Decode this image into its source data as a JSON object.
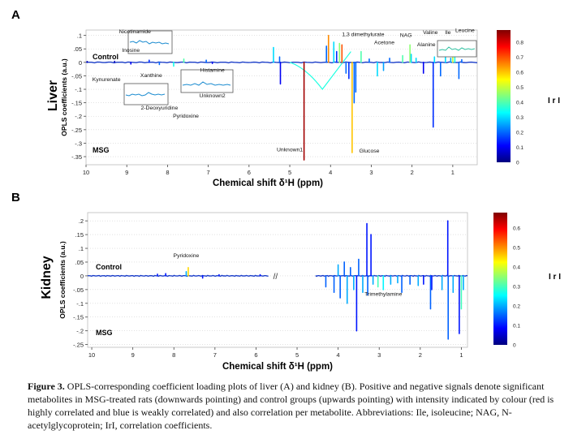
{
  "colorbar_stops": [
    "#00007f",
    "#0000ff",
    "#007fff",
    "#00ffff",
    "#7fff7f",
    "#ffff00",
    "#ff7f00",
    "#ff0000",
    "#7f0000"
  ],
  "chart_data": [
    {
      "type": "line",
      "panel_label": "A",
      "organ": "Liver",
      "ylabel": "OPLS coefficients (a.u.)",
      "xlabel": "Chemical shift  δ¹H  (ppm)",
      "x_reversed": true,
      "xlim": [
        10,
        0.4
      ],
      "ylim": [
        -0.38,
        0.12
      ],
      "xticks": [
        10,
        9,
        8,
        7,
        6,
        5,
        4,
        3,
        2,
        1
      ],
      "yticks": [
        0.1,
        0.05,
        0,
        -0.05,
        -0.1,
        -0.15,
        -0.2,
        -0.25,
        -0.3,
        -0.35
      ],
      "group_labels": {
        "top": "Control",
        "bottom": "MSG"
      },
      "colorbar": {
        "label": "I r I",
        "min": 0,
        "max": 0.88,
        "ticks": [
          0.1,
          0.2,
          0.3,
          0.4,
          0.5,
          0.6,
          0.7,
          0.8
        ]
      },
      "peaks": [
        {
          "x": 9.97,
          "y": 0.003,
          "r": 0.05
        },
        {
          "x": 9.3,
          "y": 0.004,
          "r": 0.05
        },
        {
          "x": 8.9,
          "y": -0.006,
          "r": 0.1
        },
        {
          "x": 8.45,
          "y": 0.008,
          "r": 0.15
        },
        {
          "x": 8.2,
          "y": -0.008,
          "r": 0.2
        },
        {
          "x": 7.85,
          "y": -0.014,
          "r": 0.35
        },
        {
          "x": 7.6,
          "y": 0.012,
          "r": 0.4
        },
        {
          "x": 7.05,
          "y": 0.008,
          "r": 0.2
        },
        {
          "x": 6.9,
          "y": -0.004,
          "r": 0.1
        },
        {
          "x": 5.4,
          "y": 0.055,
          "r": 0.3
        },
        {
          "x": 5.25,
          "y": 0.02,
          "r": 0.2
        },
        {
          "x": 5.23,
          "y": -0.08,
          "r": 0.1
        },
        {
          "x": 4.65,
          "y": -0.362,
          "r": 0.85
        },
        {
          "x": 4.1,
          "y": 0.06,
          "r": 0.2
        },
        {
          "x": 4.05,
          "y": 0.1,
          "r": 0.65
        },
        {
          "x": 3.92,
          "y": 0.075,
          "r": 0.3
        },
        {
          "x": 3.85,
          "y": 0.04,
          "r": 0.15
        },
        {
          "x": 3.78,
          "y": 0.07,
          "r": 0.45
        },
        {
          "x": 3.72,
          "y": 0.065,
          "r": 0.7
        },
        {
          "x": 3.62,
          "y": -0.04,
          "r": 0.2
        },
        {
          "x": 3.55,
          "y": -0.06,
          "r": 0.15
        },
        {
          "x": 3.47,
          "y": -0.335,
          "r": 0.6
        },
        {
          "x": 3.42,
          "y": -0.15,
          "r": 0.2
        },
        {
          "x": 3.38,
          "y": -0.11,
          "r": 0.2
        },
        {
          "x": 3.25,
          "y": 0.04,
          "r": 0.4
        },
        {
          "x": 3.05,
          "y": 0.012,
          "r": 0.2
        },
        {
          "x": 2.85,
          "y": -0.05,
          "r": 0.3
        },
        {
          "x": 2.7,
          "y": -0.03,
          "r": 0.25
        },
        {
          "x": 2.55,
          "y": 0.015,
          "r": 0.2
        },
        {
          "x": 2.23,
          "y": 0.025,
          "r": 0.4
        },
        {
          "x": 2.05,
          "y": 0.065,
          "r": 0.45
        },
        {
          "x": 2.02,
          "y": 0.03,
          "r": 0.3
        },
        {
          "x": 1.9,
          "y": 0.015,
          "r": 0.3
        },
        {
          "x": 1.72,
          "y": -0.04,
          "r": 0.1
        },
        {
          "x": 1.48,
          "y": -0.24,
          "r": 0.15
        },
        {
          "x": 1.45,
          "y": 0.02,
          "r": 0.3
        },
        {
          "x": 1.3,
          "y": -0.05,
          "r": 0.2
        },
        {
          "x": 1.18,
          "y": 0.02,
          "r": 0.3
        },
        {
          "x": 1.05,
          "y": 0.015,
          "r": 0.25
        },
        {
          "x": 1.0,
          "y": 0.02,
          "r": 0.5
        },
        {
          "x": 0.95,
          "y": 0.025,
          "r": 0.35
        },
        {
          "x": 0.85,
          "y": -0.06,
          "r": 0.2
        },
        {
          "x": 0.78,
          "y": 0.01,
          "r": 0.2
        }
      ],
      "broad": [
        {
          "x0": 5.0,
          "x1": 4.2,
          "y": -0.1,
          "x2": 3.5,
          "y2": 0.04,
          "r": 0.3
        }
      ],
      "annotations": [
        {
          "text": "Nicotinamide",
          "x": 8.8,
          "y": 0.108
        },
        {
          "text": "Inosine",
          "x": 8.9,
          "y": 0.038
        },
        {
          "text": "Kynurenate",
          "x": 9.5,
          "y": -0.07
        },
        {
          "text": "Xanthine",
          "x": 8.4,
          "y": -0.055
        },
        {
          "text": "2-Deoxyuridine",
          "x": 8.2,
          "y": -0.175
        },
        {
          "text": "Pyridoxine",
          "x": 7.55,
          "y": -0.205
        },
        {
          "text": "Histamine",
          "x": 6.9,
          "y": -0.035
        },
        {
          "text": "Unknown2",
          "x": 6.9,
          "y": -0.13
        },
        {
          "text": "Unknown1",
          "x": 5.0,
          "y": -0.33
        },
        {
          "text": "1,3 dimethylurate",
          "x": 3.2,
          "y": 0.098
        },
        {
          "text": "NAG",
          "x": 2.15,
          "y": 0.095
        },
        {
          "text": "Acetone",
          "x": 2.68,
          "y": 0.068
        },
        {
          "text": "Valine",
          "x": 1.55,
          "y": 0.105
        },
        {
          "text": "Ile",
          "x": 1.12,
          "y": 0.105
        },
        {
          "text": "Leucine",
          "x": 0.7,
          "y": 0.112
        },
        {
          "text": "Alanine",
          "x": 1.65,
          "y": 0.06
        },
        {
          "text": "Glucose",
          "x": 3.05,
          "y": -0.335
        }
      ]
    },
    {
      "type": "line",
      "panel_label": "B",
      "organ": "Kidney",
      "ylabel": "OPLS coefficients (a.u.)",
      "xlabel": "Chemical shift  δ¹H  (ppm)",
      "x_reversed": true,
      "xlim": [
        10.1,
        0.85
      ],
      "ylim": [
        -0.26,
        0.23
      ],
      "xticks": [
        10,
        9,
        8,
        7,
        6,
        5,
        4,
        3,
        2,
        1
      ],
      "yticks": [
        0.2,
        0.15,
        0.1,
        0.05,
        0,
        -0.05,
        -0.1,
        -0.15,
        -0.2,
        -0.25
      ],
      "group_labels": {
        "top": "Control",
        "bottom": "MSG"
      },
      "colorbar": {
        "label": "I r I",
        "min": 0,
        "max": 0.68,
        "ticks": [
          0.1,
          0.2,
          0.3,
          0.4,
          0.5,
          0.6
        ]
      },
      "peaks": [
        {
          "x": 8.4,
          "y": 0.006,
          "r": 0.1
        },
        {
          "x": 8.2,
          "y": 0.008,
          "r": 0.1
        },
        {
          "x": 7.7,
          "y": 0.015,
          "r": 0.2
        },
        {
          "x": 7.65,
          "y": 0.03,
          "r": 0.45
        },
        {
          "x": 7.3,
          "y": -0.008,
          "r": 0.1
        },
        {
          "x": 6.9,
          "y": 0.004,
          "r": 0.1
        },
        {
          "x": 5.9,
          "y": 0.004,
          "r": 0.1
        },
        {
          "x": 4.3,
          "y": -0.04,
          "r": 0.15
        },
        {
          "x": 4.1,
          "y": -0.06,
          "r": 0.15
        },
        {
          "x": 4.0,
          "y": 0.04,
          "r": 0.2
        },
        {
          "x": 3.95,
          "y": -0.08,
          "r": 0.15
        },
        {
          "x": 3.85,
          "y": 0.05,
          "r": 0.15
        },
        {
          "x": 3.78,
          "y": -0.1,
          "r": 0.2
        },
        {
          "x": 3.7,
          "y": 0.03,
          "r": 0.15
        },
        {
          "x": 3.62,
          "y": -0.05,
          "r": 0.2
        },
        {
          "x": 3.55,
          "y": -0.2,
          "r": 0.1
        },
        {
          "x": 3.5,
          "y": 0.06,
          "r": 0.15
        },
        {
          "x": 3.4,
          "y": -0.06,
          "r": 0.2
        },
        {
          "x": 3.3,
          "y": 0.19,
          "r": 0.1
        },
        {
          "x": 3.28,
          "y": -0.07,
          "r": 0.15
        },
        {
          "x": 3.2,
          "y": 0.15,
          "r": 0.1
        },
        {
          "x": 3.15,
          "y": -0.03,
          "r": 0.2
        },
        {
          "x": 3.03,
          "y": -0.04,
          "r": 0.3
        },
        {
          "x": 2.9,
          "y": -0.05,
          "r": 0.25
        },
        {
          "x": 2.72,
          "y": -0.03,
          "r": 0.2
        },
        {
          "x": 2.55,
          "y": -0.025,
          "r": 0.2
        },
        {
          "x": 2.45,
          "y": -0.06,
          "r": 0.15
        },
        {
          "x": 2.25,
          "y": -0.03,
          "r": 0.15
        },
        {
          "x": 2.05,
          "y": -0.035,
          "r": 0.2
        },
        {
          "x": 1.92,
          "y": -0.03,
          "r": 0.1
        },
        {
          "x": 1.75,
          "y": -0.12,
          "r": 0.15
        },
        {
          "x": 1.72,
          "y": -0.05,
          "r": 0.1
        },
        {
          "x": 1.47,
          "y": -0.05,
          "r": 0.2
        },
        {
          "x": 1.33,
          "y": 0.2,
          "r": 0.1
        },
        {
          "x": 1.32,
          "y": -0.23,
          "r": 0.15
        },
        {
          "x": 1.2,
          "y": -0.06,
          "r": 0.2
        },
        {
          "x": 1.05,
          "y": -0.21,
          "r": 0.1
        },
        {
          "x": 1.0,
          "y": -0.12,
          "r": 0.3
        },
        {
          "x": 0.95,
          "y": -0.05,
          "r": 0.2
        }
      ],
      "broad": [],
      "annotations": [
        {
          "text": "Pyridoxine",
          "x": 7.7,
          "y": 0.068
        },
        {
          "text": "Trimethylamine",
          "x": 2.9,
          "y": -0.072
        }
      ]
    }
  ],
  "caption": {
    "label": "Figure 3.",
    "text": " OPLS-corresponding coefficient loading plots of liver (A) and kidney (B). Positive and negative signals denote significant metabolites in MSG-treated rats (downwards pointing) and control groups (upwards pointing) with intensity indicated by colour (red is highly correlated and blue is weakly correlated) and also correlation per metabolite. Abbreviations: Ile, isoleucine; NAG, N-acetylglycoprotein; IrI, correlation coefficients."
  }
}
